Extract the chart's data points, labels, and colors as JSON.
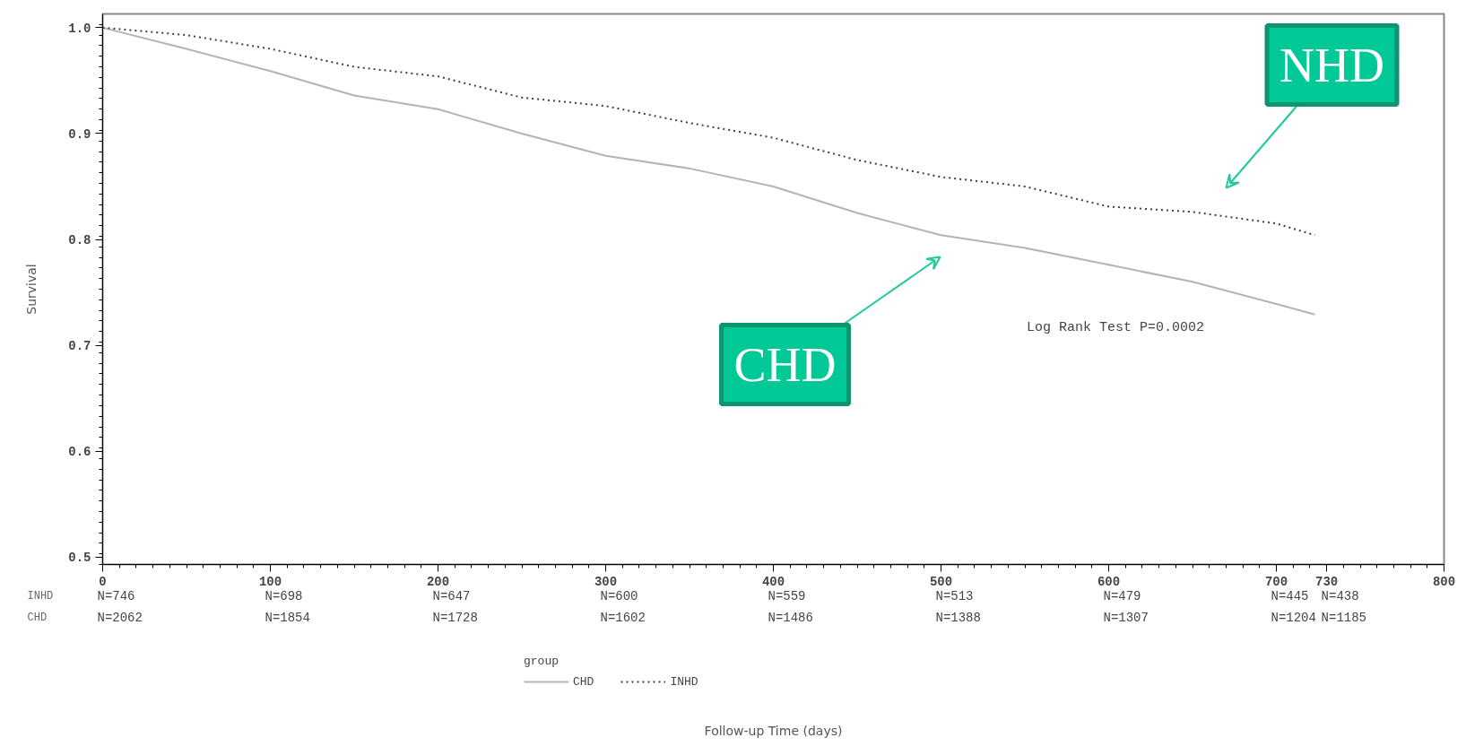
{
  "chart_data": {
    "type": "line",
    "ylabel": "Survival",
    "legend_title": "group",
    "legend": "bottom",
    "x": [
      0,
      50,
      100,
      150,
      200,
      250,
      300,
      350,
      400,
      450,
      500,
      550,
      600,
      650,
      700,
      723
    ],
    "series": [
      {
        "name": "CHD",
        "color": "#b4b4b4",
        "line_style": "solid",
        "values": [
          1.0,
          0.98,
          0.959,
          0.936,
          0.923,
          0.9,
          0.879,
          0.867,
          0.85,
          0.825,
          0.804,
          0.792,
          0.776,
          0.76,
          0.739,
          0.729
        ]
      },
      {
        "name": "INHD",
        "color": "#404040",
        "line_style": "dotted",
        "values": [
          1.0,
          0.993,
          0.98,
          0.963,
          0.954,
          0.934,
          0.926,
          0.91,
          0.896,
          0.875,
          0.859,
          0.85,
          0.831,
          0.826,
          0.815,
          0.804
        ]
      }
    ],
    "xlim": [
      0,
      800
    ],
    "xticks": [
      0,
      100,
      200,
      300,
      400,
      500,
      600,
      700,
      730,
      800
    ],
    "ylim": [
      0.493,
      1.013
    ],
    "yticks": [
      0.5,
      0.6,
      0.7,
      0.8,
      0.9,
      {
        "value": 1,
        "label": "1.0"
      }
    ],
    "grid": false,
    "annotations": [
      "INHD",
      "N=746",
      "N=698",
      "N=647",
      "N=600",
      "N=559",
      "N=513",
      "N=479",
      "N=445",
      "N=438",
      "CHD",
      "N=2062",
      "N=1854",
      "N=1728",
      "N=1602",
      "N=1486",
      "N=1388",
      "N=1307",
      "N=1204",
      "N=1185",
      "Log Rank Test P=0.0002",
      "NHD",
      "CHD",
      "Follow-up Time (days)"
    ]
  }
}
